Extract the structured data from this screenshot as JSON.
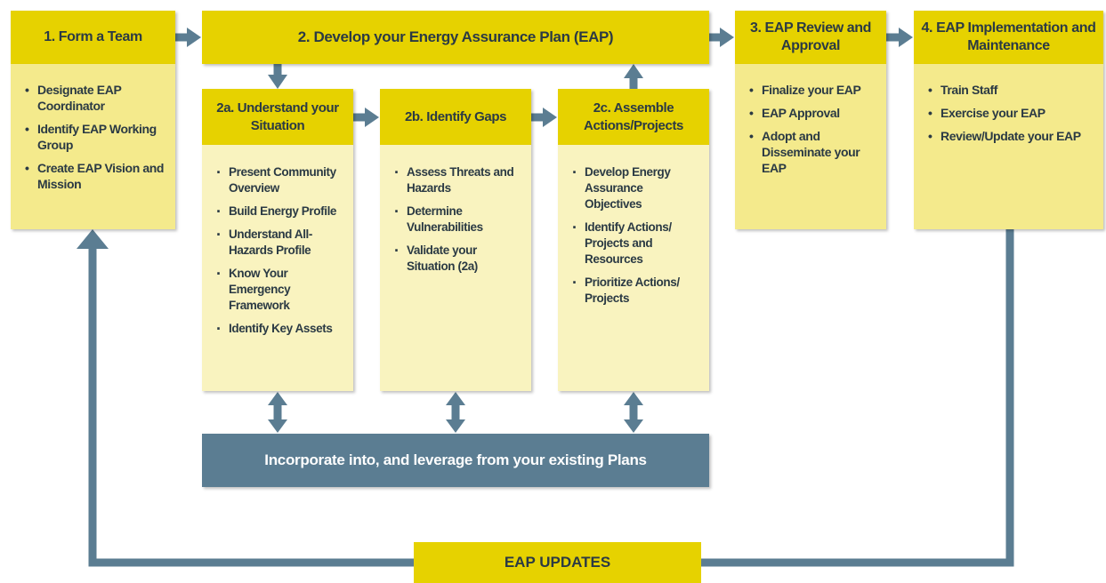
{
  "steps": [
    {
      "title": "1. Form a Team",
      "items": [
        "Designate EAP Coordinator",
        "Identify EAP Working Group",
        "Create EAP Vision and Mission"
      ]
    },
    {
      "title": "2. Develop your Energy Assurance Plan (EAP)"
    },
    {
      "title": "3. EAP Review and Approval",
      "items": [
        "Finalize your EAP",
        "EAP Approval",
        "Adopt and Disseminate your EAP"
      ]
    },
    {
      "title": "4. EAP Implementation and Maintenance",
      "items": [
        "Train Staff",
        "Exercise your EAP",
        "Review/Update your EAP"
      ]
    }
  ],
  "substeps": [
    {
      "title": "2a. Understand your Situation",
      "items": [
        "Present Community Overview",
        "Build Energy Profile",
        "Understand All-Hazards Profile",
        "Know Your Emergency Framework",
        "Identify Key Assets"
      ]
    },
    {
      "title": "2b. Identify Gaps",
      "items": [
        "Assess Threats and Hazards",
        "Determine Vulnerabilities",
        "Validate your Situation (2a)"
      ]
    },
    {
      "title": "2c. Assemble Actions/Projects",
      "items": [
        "Develop Energy Assurance Objectives",
        "Identify Actions/ Projects and Resources",
        "Prioritize Actions/ Projects"
      ]
    }
  ],
  "plans": "Incorporate into, and leverage from your existing Plans",
  "updates": "EAP UPDATES"
}
